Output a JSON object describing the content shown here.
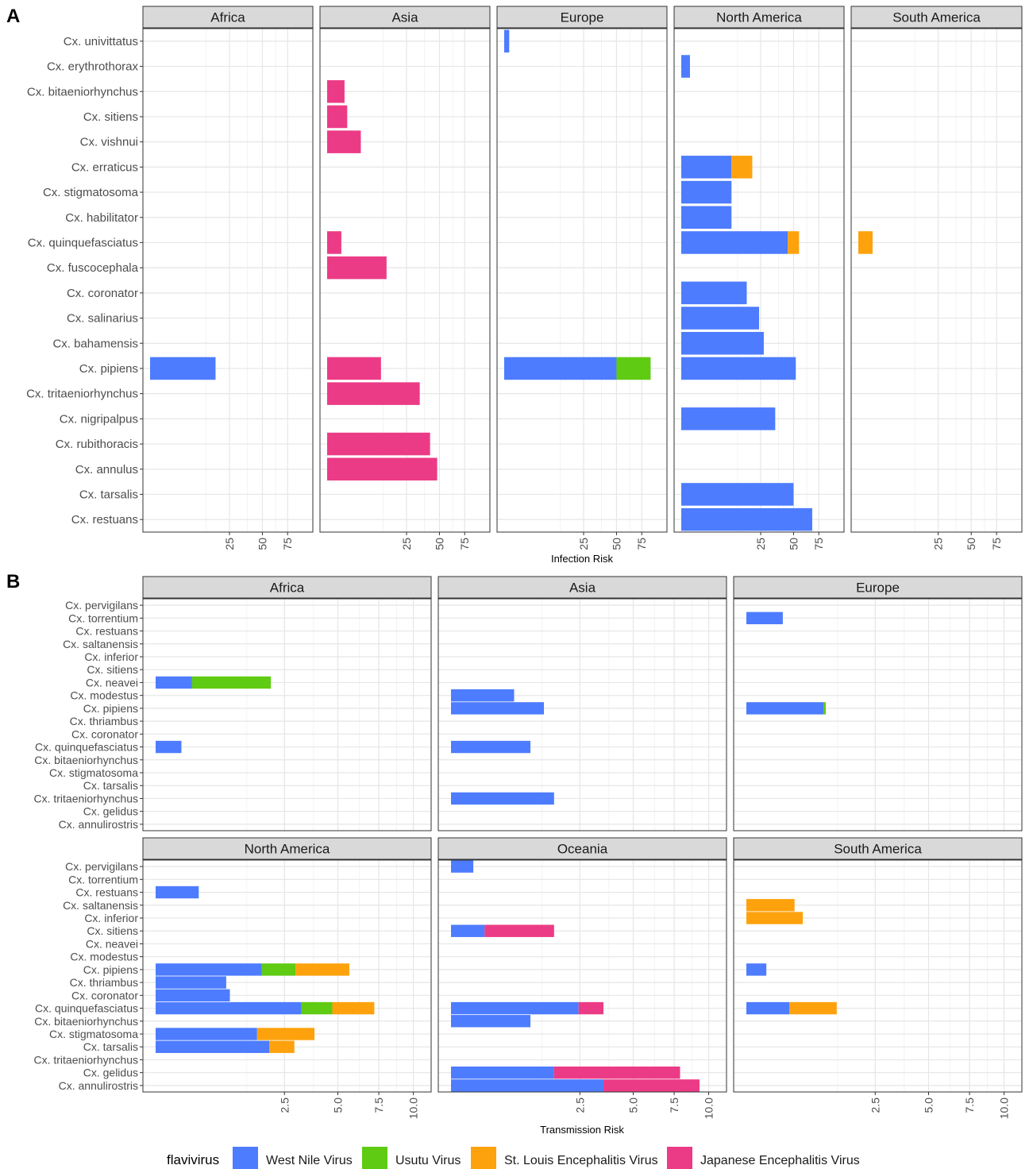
{
  "colors": {
    "West Nile Virus": "#4d7cfe",
    "Usutu Virus": "#5fcb12",
    "St. Louis Encephalitis Virus": "#fda20d",
    "Japanese Encephalitis Virus": "#ec3b86",
    "strip_fill": "#d9d9d9",
    "grid_major": "#e6e6e6",
    "grid_minor": "#f3f3f3",
    "panel_border": "#333333",
    "axis_text": "#4d4d4d"
  },
  "legend": {
    "title": "flavivirus",
    "entries": [
      "West Nile Virus",
      "Usutu Virus",
      "St. Louis Encephalitis Virus",
      "Japanese Encephalitis Virus"
    ]
  },
  "chart_data": [
    {
      "panel_label": "A",
      "type": "bar",
      "orientation": "horizontal",
      "stacked": true,
      "xlabel": "Infection Risk",
      "ylabel": "",
      "x_scale": "sqrt",
      "xlim": [
        0,
        96
      ],
      "x_ticks": [
        25,
        50,
        75
      ],
      "x_tick_labels": [
        "25",
        "50",
        "75"
      ],
      "facets": [
        "Africa",
        "Asia",
        "Europe",
        "North America",
        "South America"
      ],
      "categories": [
        "Cx. univittatus",
        "Cx. erythrothorax",
        "Cx. bitaeniorhynchus",
        "Cx. sitiens",
        "Cx. vishnui",
        "Cx. erraticus",
        "Cx. stigmatosoma",
        "Cx. habilitator",
        "Cx. quinquefasciatus",
        "Cx. fuscocephala",
        "Cx. coronator",
        "Cx. salinarius",
        "Cx. bahamensis",
        "Cx. pipiens",
        "Cx. tritaeniorhynchus",
        "Cx. nigripalpus",
        "Cx. rubithoracis",
        "Cx. annulus",
        "Cx. tarsalis",
        "Cx. restuans"
      ],
      "bars": [
        {
          "facet": "Africa",
          "species": "Cx. pipiens",
          "virus": "West Nile Virus",
          "value": 17
        },
        {
          "facet": "Asia",
          "species": "Cx. bitaeniorhynchus",
          "virus": "Japanese Encephalitis Virus",
          "value": 1.2
        },
        {
          "facet": "Asia",
          "species": "Cx. sitiens",
          "virus": "Japanese Encephalitis Virus",
          "value": 1.6
        },
        {
          "facet": "Asia",
          "species": "Cx. vishnui",
          "virus": "Japanese Encephalitis Virus",
          "value": 4.5
        },
        {
          "facet": "Asia",
          "species": "Cx. quinquefasciatus",
          "virus": "Japanese Encephalitis Virus",
          "value": 0.8
        },
        {
          "facet": "Asia",
          "species": "Cx. fuscocephala",
          "virus": "Japanese Encephalitis Virus",
          "value": 14
        },
        {
          "facet": "Asia",
          "species": "Cx. pipiens",
          "virus": "Japanese Encephalitis Virus",
          "value": 11.5
        },
        {
          "facet": "Asia",
          "species": "Cx. tritaeniorhynchus",
          "virus": "Japanese Encephalitis Virus",
          "value": 34
        },
        {
          "facet": "Asia",
          "species": "Cx. rubithoracis",
          "virus": "Japanese Encephalitis Virus",
          "value": 42
        },
        {
          "facet": "Asia",
          "species": "Cx. annulus",
          "virus": "Japanese Encephalitis Virus",
          "value": 48
        },
        {
          "facet": "Europe",
          "species": "Cx. univittatus",
          "virus": "West Nile Virus",
          "value": 0.1
        },
        {
          "facet": "Europe",
          "species": "Cx. pipiens",
          "virus": "West Nile Virus",
          "value": 50
        },
        {
          "facet": "Europe",
          "species": "Cx. pipiens",
          "virus": "Usutu Virus",
          "value": 35
        },
        {
          "facet": "North America",
          "species": "Cx. erythrothorax",
          "virus": "West Nile Virus",
          "value": 0.3
        },
        {
          "facet": "North America",
          "species": "Cx. erraticus",
          "virus": "West Nile Virus",
          "value": 10
        },
        {
          "facet": "North America",
          "species": "Cx. erraticus",
          "virus": "St. Louis Encephalitis Virus",
          "value": 10
        },
        {
          "facet": "North America",
          "species": "Cx. stigmatosoma",
          "virus": "West Nile Virus",
          "value": 10
        },
        {
          "facet": "North America",
          "species": "Cx. habilitator",
          "virus": "West Nile Virus",
          "value": 10
        },
        {
          "facet": "North America",
          "species": "Cx. quinquefasciatus",
          "virus": "West Nile Virus",
          "value": 45
        },
        {
          "facet": "North America",
          "species": "Cx. quinquefasciatus",
          "virus": "St. Louis Encephalitis Virus",
          "value": 10
        },
        {
          "facet": "North America",
          "species": "Cx. coronator",
          "virus": "West Nile Virus",
          "value": 17
        },
        {
          "facet": "North America",
          "species": "Cx. salinarius",
          "virus": "West Nile Virus",
          "value": 24
        },
        {
          "facet": "North America",
          "species": "Cx. bahamensis",
          "virus": "West Nile Virus",
          "value": 27
        },
        {
          "facet": "North America",
          "species": "Cx. pipiens",
          "virus": "West Nile Virus",
          "value": 52
        },
        {
          "facet": "North America",
          "species": "Cx. nigripalpus",
          "virus": "West Nile Virus",
          "value": 35
        },
        {
          "facet": "North America",
          "species": "Cx. tarsalis",
          "virus": "West Nile Virus",
          "value": 50
        },
        {
          "facet": "North America",
          "species": "Cx. restuans",
          "virus": "West Nile Virus",
          "value": 68
        },
        {
          "facet": "South America",
          "species": "Cx. quinquefasciatus",
          "virus": "St. Louis Encephalitis Virus",
          "value": 0.8
        }
      ]
    },
    {
      "panel_label": "B",
      "type": "bar",
      "orientation": "horizontal",
      "stacked": true,
      "xlabel": "Transmission Risk",
      "ylabel": "",
      "x_scale": "sqrt",
      "xlim": [
        0,
        10.4
      ],
      "x_ticks": [
        2.5,
        5.0,
        7.5,
        10.0
      ],
      "x_tick_labels": [
        "2.5",
        "5.0",
        "7.5",
        "10.0"
      ],
      "facets": [
        "Africa",
        "Asia",
        "Europe",
        "North America",
        "Oceania",
        "South America"
      ],
      "categories": [
        "Cx. pervigilans",
        "Cx. torrentium",
        "Cx. restuans",
        "Cx. saltanensis",
        "Cx. inferior",
        "Cx. sitiens",
        "Cx. neavei",
        "Cx. modestus",
        "Cx. pipiens",
        "Cx. thriambus",
        "Cx. coronator",
        "Cx. quinquefasciatus",
        "Cx. bitaeniorhynchus",
        "Cx. stigmatosoma",
        "Cx. tarsalis",
        "Cx. tritaeniorhynchus",
        "Cx. gelidus",
        "Cx. annulirostris"
      ],
      "bars": [
        {
          "facet": "Africa",
          "species": "Cx. neavei",
          "virus": "West Nile Virus",
          "value": 0.2
        },
        {
          "facet": "Africa",
          "species": "Cx. neavei",
          "virus": "Usutu Virus",
          "value": 1.8
        },
        {
          "facet": "Africa",
          "species": "Cx. quinquefasciatus",
          "virus": "West Nile Virus",
          "value": 0.1
        },
        {
          "facet": "Asia",
          "species": "Cx. modestus",
          "virus": "West Nile Virus",
          "value": 0.6
        },
        {
          "facet": "Asia",
          "species": "Cx. pipiens",
          "virus": "West Nile Virus",
          "value": 1.3
        },
        {
          "facet": "Asia",
          "species": "Cx. quinquefasciatus",
          "virus": "West Nile Virus",
          "value": 0.95
        },
        {
          "facet": "Asia",
          "species": "Cx. tritaeniorhynchus",
          "virus": "West Nile Virus",
          "value": 1.6
        },
        {
          "facet": "Europe",
          "species": "Cx. torrentium",
          "virus": "West Nile Virus",
          "value": 0.2
        },
        {
          "facet": "Europe",
          "species": "Cx. pipiens",
          "virus": "West Nile Virus",
          "value": 0.9
        },
        {
          "facet": "Europe",
          "species": "Cx. pipiens",
          "virus": "Usutu Virus",
          "value": 0.05
        },
        {
          "facet": "North America",
          "species": "Cx. restuans",
          "virus": "West Nile Virus",
          "value": 0.28
        },
        {
          "facet": "North America",
          "species": "Cx. pipiens",
          "virus": "West Nile Virus",
          "value": 1.7
        },
        {
          "facet": "North America",
          "species": "Cx. pipiens",
          "virus": "Usutu Virus",
          "value": 1.25
        },
        {
          "facet": "North America",
          "species": "Cx. pipiens",
          "virus": "St. Louis Encephalitis Virus",
          "value": 2.7
        },
        {
          "facet": "North America",
          "species": "Cx. thriambus",
          "virus": "West Nile Virus",
          "value": 0.75
        },
        {
          "facet": "North America",
          "species": "Cx. coronator",
          "virus": "West Nile Virus",
          "value": 0.83
        },
        {
          "facet": "North America",
          "species": "Cx. quinquefasciatus",
          "virus": "West Nile Virus",
          "value": 3.2
        },
        {
          "facet": "North America",
          "species": "Cx. quinquefasciatus",
          "virus": "Usutu Virus",
          "value": 1.5
        },
        {
          "facet": "North America",
          "species": "Cx. quinquefasciatus",
          "virus": "St. Louis Encephalitis Virus",
          "value": 2.5
        },
        {
          "facet": "North America",
          "species": "Cx. stigmatosoma",
          "virus": "West Nile Virus",
          "value": 1.55
        },
        {
          "facet": "North America",
          "species": "Cx. stigmatosoma",
          "virus": "St. Louis Encephalitis Virus",
          "value": 2.25
        },
        {
          "facet": "North America",
          "species": "Cx. tarsalis",
          "virus": "West Nile Virus",
          "value": 1.95
        },
        {
          "facet": "North America",
          "species": "Cx. tarsalis",
          "virus": "St. Louis Encephalitis Virus",
          "value": 0.95
        },
        {
          "facet": "Oceania",
          "species": "Cx. pervigilans",
          "virus": "West Nile Virus",
          "value": 0.075
        },
        {
          "facet": "Oceania",
          "species": "Cx. sitiens",
          "virus": "West Nile Virus",
          "value": 0.17
        },
        {
          "facet": "Oceania",
          "species": "Cx. sitiens",
          "virus": "Japanese Encephalitis Virus",
          "value": 1.43
        },
        {
          "facet": "Oceania",
          "species": "Cx. quinquefasciatus",
          "virus": "West Nile Virus",
          "value": 2.45
        },
        {
          "facet": "Oceania",
          "species": "Cx. quinquefasciatus",
          "virus": "Japanese Encephalitis Virus",
          "value": 1.05
        },
        {
          "facet": "Oceania",
          "species": "Cx. bitaeniorhynchus",
          "virus": "West Nile Virus",
          "value": 0.95
        },
        {
          "facet": "Oceania",
          "species": "Cx. gelidus",
          "virus": "West Nile Virus",
          "value": 1.6
        },
        {
          "facet": "Oceania",
          "species": "Cx. gelidus",
          "virus": "Japanese Encephalitis Virus",
          "value": 6.3
        },
        {
          "facet": "Oceania",
          "species": "Cx. annulirostris",
          "virus": "West Nile Virus",
          "value": 3.5
        },
        {
          "facet": "Oceania",
          "species": "Cx. annulirostris",
          "virus": "Japanese Encephalitis Virus",
          "value": 5.8
        },
        {
          "facet": "South America",
          "species": "Cx. saltanensis",
          "virus": "St. Louis Encephalitis Virus",
          "value": 0.35
        },
        {
          "facet": "South America",
          "species": "Cx. inferior",
          "virus": "St. Louis Encephalitis Virus",
          "value": 0.48
        },
        {
          "facet": "South America",
          "species": "Cx. pipiens",
          "virus": "West Nile Virus",
          "value": 0.06
        },
        {
          "facet": "South America",
          "species": "Cx. quinquefasciatus",
          "virus": "West Nile Virus",
          "value": 0.28
        },
        {
          "facet": "South America",
          "species": "Cx. quinquefasciatus",
          "virus": "St. Louis Encephalitis Virus",
          "value": 0.95
        }
      ]
    }
  ]
}
